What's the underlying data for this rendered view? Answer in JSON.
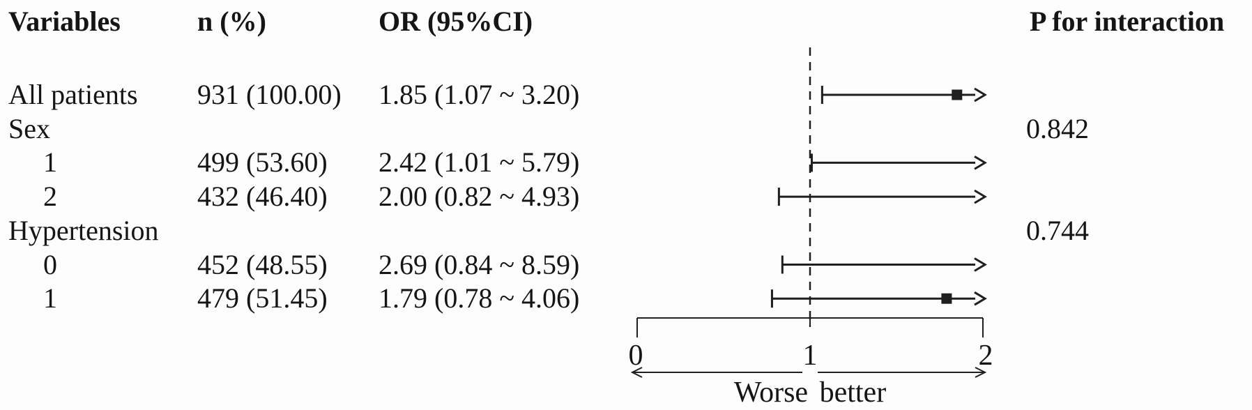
{
  "figure": {
    "kind": "forest-plot",
    "background": "#fdfdfd"
  },
  "colors": {
    "ink": "#151515",
    "line": "#1f1f1f"
  },
  "chart_data": {
    "type": "scatter",
    "variant": "forest-plot",
    "columns": [
      "Variables",
      "n (%)",
      "OR (95%CI)",
      "P for interaction"
    ],
    "rows": [
      {
        "variable": "All patients",
        "indent": false,
        "n_pct": "931 (100.00)",
        "or_ci": "1.85 (1.07 ~ 3.20)",
        "p_interaction": "",
        "or": 1.85,
        "ci_low": 1.07,
        "ci_high": 3.2,
        "marker_visible": true
      },
      {
        "variable": "Sex",
        "indent": false,
        "n_pct": "",
        "or_ci": "",
        "p_interaction": "0.842"
      },
      {
        "variable": "1",
        "indent": true,
        "n_pct": "499 (53.60)",
        "or_ci": "2.42 (1.01 ~ 5.79)",
        "p_interaction": "",
        "or": 2.42,
        "ci_low": 1.01,
        "ci_high": 5.79,
        "marker_visible": false
      },
      {
        "variable": "2",
        "indent": true,
        "n_pct": "432 (46.40)",
        "or_ci": "2.00 (0.82 ~ 4.93)",
        "p_interaction": "",
        "or": 2.0,
        "ci_low": 0.82,
        "ci_high": 4.93,
        "marker_visible": false
      },
      {
        "variable": "Hypertension",
        "indent": false,
        "n_pct": "",
        "or_ci": "",
        "p_interaction": "0.744"
      },
      {
        "variable": "0",
        "indent": true,
        "n_pct": "452 (48.55)",
        "or_ci": "2.69 (0.84 ~ 8.59)",
        "p_interaction": "",
        "or": 2.69,
        "ci_low": 0.84,
        "ci_high": 8.59,
        "marker_visible": false
      },
      {
        "variable": "1",
        "indent": true,
        "n_pct": "479 (51.45)",
        "or_ci": "1.79 (0.78 ~ 4.06)",
        "p_interaction": "",
        "or": 1.79,
        "ci_low": 0.78,
        "ci_high": 4.06,
        "marker_visible": true
      }
    ],
    "x_axis": {
      "min": 0,
      "max": 2,
      "tick_values": [
        0,
        1,
        2
      ],
      "tick_labels": [
        "0",
        "1",
        "2"
      ],
      "reference_line": 1,
      "caption": "Worse better",
      "upper_ci_clipped_as_arrow": true
    }
  }
}
